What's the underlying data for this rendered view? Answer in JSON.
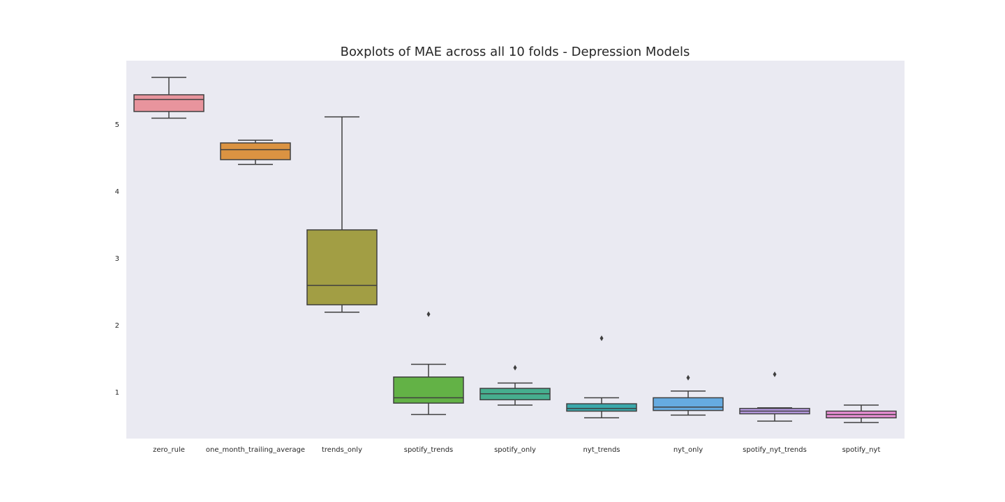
{
  "chart_data": {
    "type": "box",
    "title": "Boxplots of MAE across all 10 folds - Depression Models",
    "xlabel": "",
    "ylabel": "",
    "ylim": [
      0.3,
      5.95
    ],
    "yticks": [
      "1",
      "2",
      "3",
      "4",
      "5"
    ],
    "grid": false,
    "background": "#eaeaf2",
    "line_color": "#3f3f3f",
    "categories": [
      "zero_rule",
      "one_month_trailing_average",
      "trends_only",
      "spotify_trends",
      "spotify_only",
      "nyt_trends",
      "nyt_only",
      "spotify_nyt_trends",
      "spotify_nyt"
    ],
    "boxes": [
      {
        "whisker_low": 5.09,
        "q1": 5.19,
        "median": 5.37,
        "q3": 5.44,
        "whisker_high": 5.7,
        "outliers": [],
        "color": "#e8949d"
      },
      {
        "whisker_low": 4.4,
        "q1": 4.47,
        "median": 4.62,
        "q3": 4.72,
        "whisker_high": 4.76,
        "outliers": [],
        "color": "#db9342"
      },
      {
        "whisker_low": 2.19,
        "q1": 2.3,
        "median": 2.59,
        "q3": 3.42,
        "whisker_high": 5.11,
        "outliers": [],
        "color": "#a29e44"
      },
      {
        "whisker_low": 0.66,
        "q1": 0.83,
        "median": 0.91,
        "q3": 1.22,
        "whisker_high": 1.41,
        "outliers": [
          2.16
        ],
        "color": "#63b246"
      },
      {
        "whisker_low": 0.8,
        "q1": 0.88,
        "median": 0.97,
        "q3": 1.05,
        "whisker_high": 1.13,
        "outliers": [
          1.36
        ],
        "color": "#46ae8e"
      },
      {
        "whisker_low": 0.61,
        "q1": 0.71,
        "median": 0.75,
        "q3": 0.82,
        "whisker_high": 0.91,
        "outliers": [
          1.8
        ],
        "color": "#3aa8ab"
      },
      {
        "whisker_low": 0.65,
        "q1": 0.72,
        "median": 0.77,
        "q3": 0.91,
        "whisker_high": 1.01,
        "outliers": [
          1.21
        ],
        "color": "#66abe1"
      },
      {
        "whisker_low": 0.56,
        "q1": 0.67,
        "median": 0.71,
        "q3": 0.75,
        "whisker_high": 0.76,
        "outliers": [
          1.26
        ],
        "color": "#b99be6"
      },
      {
        "whisker_low": 0.54,
        "q1": 0.61,
        "median": 0.66,
        "q3": 0.71,
        "whisker_high": 0.8,
        "outliers": [],
        "color": "#e98fd5"
      }
    ]
  }
}
